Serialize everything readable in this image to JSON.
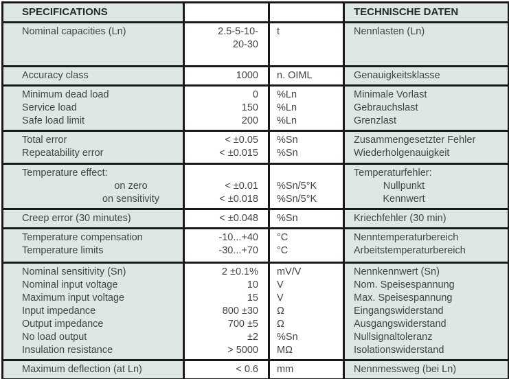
{
  "header": {
    "specifications": "SPECIFICATIONS",
    "technische_daten": "TECHNISCHE DATEN"
  },
  "colors": {
    "label_cell_background": "#dde8e3",
    "value_cell_background": "#ffffff",
    "grid_border": "#191919",
    "text": "#3e4446"
  },
  "sections": [
    {
      "en": [
        "Nominal capacities (Ln)"
      ],
      "values": [
        "2.5-5-10-",
        "20-30"
      ],
      "units": [
        "t"
      ],
      "de": [
        "Nennlasten (Ln)"
      ]
    },
    {
      "en": [
        "Accuracy class"
      ],
      "values": [
        "1000"
      ],
      "units": [
        "n. OIML"
      ],
      "de": [
        "Genauigkeitsklasse"
      ]
    },
    {
      "en": [
        "Minimum dead load",
        "Service load",
        "Safe load limit"
      ],
      "values": [
        "0",
        "150",
        "200"
      ],
      "units": [
        "%Ln",
        "%Ln",
        "%Ln"
      ],
      "de": [
        "Minimale Vorlast",
        "Gebrauchslast",
        "Grenzlast"
      ]
    },
    {
      "en": [
        "Total error",
        "Repeatability error"
      ],
      "values": [
        "< ±0.05",
        "< ±0.015"
      ],
      "units": [
        "%Sn",
        "%Sn"
      ],
      "de": [
        "Zusammengesetzter Fehler",
        "Wiederholgenauigkeit"
      ]
    },
    {
      "en": [
        "Temperature effect:",
        "on zero",
        "on sensitivity"
      ],
      "center_en": [
        1,
        2
      ],
      "values": [
        "",
        "< ±0.01",
        "< ±0.018"
      ],
      "units": [
        "",
        "%Sn/5°K",
        "%Sn/5°K"
      ],
      "de": [
        "Temperaturfehler:",
        "Nullpunkt",
        "Kennwert"
      ],
      "center_de": [
        1,
        2
      ]
    },
    {
      "en": [
        "Creep error (30 minutes)"
      ],
      "values": [
        "< ±0.048"
      ],
      "units": [
        "%Sn"
      ],
      "de": [
        "Kriechfehler (30 min)"
      ]
    },
    {
      "en": [
        "Temperature compensation",
        "Temperature limits"
      ],
      "values": [
        "-10...+40",
        "-30...+70"
      ],
      "units": [
        "°C",
        "°C"
      ],
      "de": [
        "Nenntemperaturbereich",
        "Arbeitstemperaturbereich"
      ]
    },
    {
      "en": [
        "Nominal sensitivity (Sn)",
        "Nominal input voltage",
        "Maximum input voltage",
        "Input impedance",
        "Output impedance",
        "No load output",
        "Insulation resistance"
      ],
      "values": [
        "2 ±0.1%",
        "10",
        "15",
        "800 ±30",
        "700 ±5",
        "±2",
        "> 5000"
      ],
      "units": [
        "mV/V",
        "V",
        "V",
        "Ω",
        "Ω",
        "%Sn",
        "MΩ"
      ],
      "de": [
        "Nennkennwert (Sn)",
        "Nom. Speisespannung",
        "Max. Speisespannung",
        "Eingangswiderstand",
        "Ausgangswiderstand",
        "Nullsignaltoleranz",
        "Isolationswiderstand"
      ]
    },
    {
      "en": [
        "Maximum deflection (at Ln)"
      ],
      "values": [
        "< 0.6"
      ],
      "units": [
        "mm"
      ],
      "de": [
        "Nennmessweg (bei Ln)"
      ]
    }
  ]
}
